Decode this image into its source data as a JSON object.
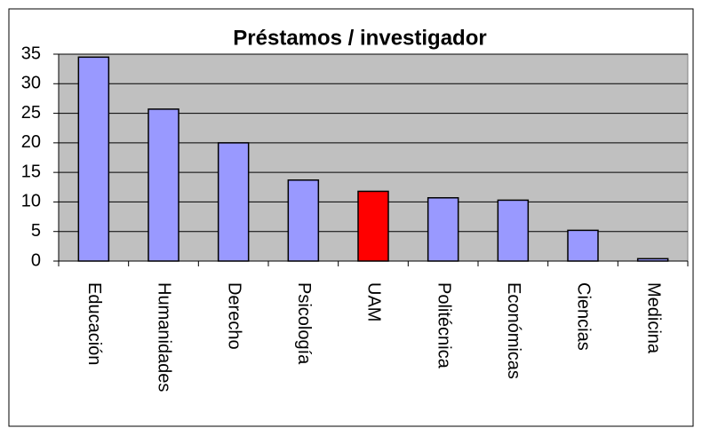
{
  "chart_data": {
    "type": "bar",
    "title": "Préstamos / investigador",
    "categories": [
      "Educación",
      "Humanidades",
      "Derecho",
      "Psicología",
      "UAM",
      "Politécnica",
      "Económicas",
      "Ciencias",
      "Medicina"
    ],
    "values": [
      34.5,
      25.7,
      20,
      13.7,
      11.8,
      10.7,
      10.3,
      5.2,
      0.4
    ],
    "colors": [
      "#9999ff",
      "#9999ff",
      "#9999ff",
      "#9999ff",
      "#ff0000",
      "#9999ff",
      "#9999ff",
      "#9999ff",
      "#9999ff"
    ],
    "ylim": [
      0,
      35
    ],
    "yticks": [
      0,
      5,
      10,
      15,
      20,
      25,
      30,
      35
    ],
    "grid": true
  }
}
